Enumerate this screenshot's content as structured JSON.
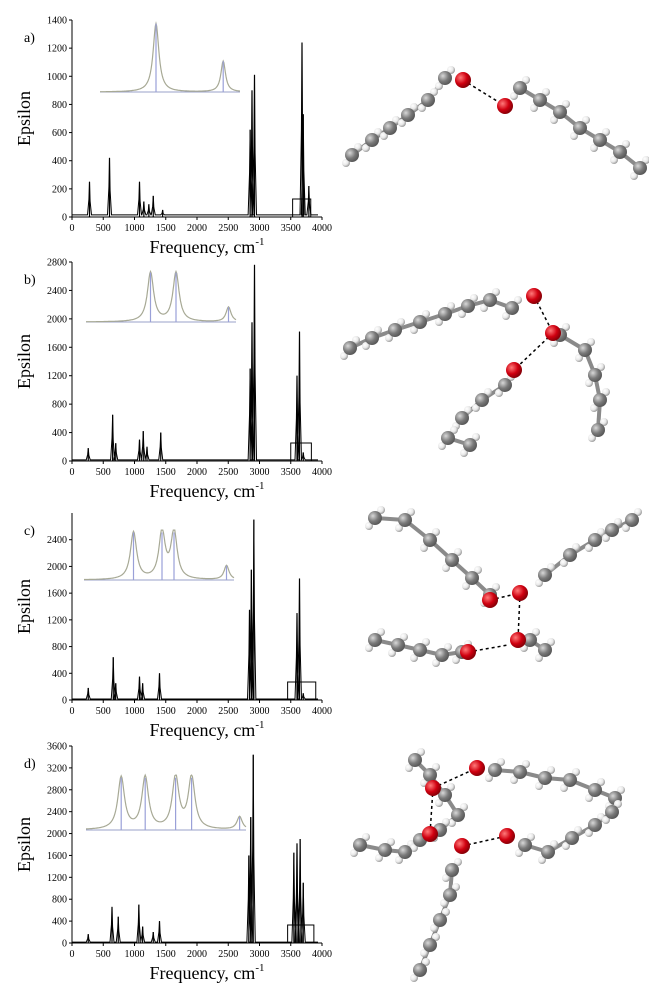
{
  "chart_data": [
    {
      "type": "line",
      "panel_label": "a)",
      "xlabel": "Frequency, cm",
      "xlabel_sup": "-1",
      "ylabel": "Epsilon",
      "xlim": [
        0,
        4000
      ],
      "ylim": [
        0,
        1400
      ],
      "xticks": [
        0,
        500,
        1000,
        1500,
        2000,
        2500,
        3000,
        3500,
        4000
      ],
      "yticks": [
        0,
        200,
        400,
        600,
        800,
        1000,
        1200,
        1400
      ],
      "peaks": [
        [
          280,
          250
        ],
        [
          600,
          420
        ],
        [
          1080,
          250
        ],
        [
          1150,
          110
        ],
        [
          1230,
          90
        ],
        [
          1300,
          150
        ],
        [
          1450,
          50
        ],
        [
          2850,
          620
        ],
        [
          2880,
          900
        ],
        [
          2920,
          1010
        ],
        [
          3680,
          1240
        ],
        [
          3700,
          730
        ],
        [
          3790,
          220
        ]
      ],
      "box": [
        3530,
        3820
      ]
    },
    {
      "type": "line",
      "panel_label": "b)",
      "xlabel": "Frequency, cm",
      "xlabel_sup": "-1",
      "ylabel": "Epsilon",
      "xlim": [
        0,
        4000
      ],
      "ylim": [
        0,
        2800
      ],
      "xticks": [
        0,
        500,
        1000,
        1500,
        2000,
        2500,
        3000,
        3500,
        4000
      ],
      "yticks": [
        0,
        400,
        800,
        1200,
        1600,
        2000,
        2400,
        2800
      ],
      "peaks": [
        [
          260,
          180
        ],
        [
          650,
          650
        ],
        [
          700,
          250
        ],
        [
          1080,
          300
        ],
        [
          1140,
          420
        ],
        [
          1200,
          200
        ],
        [
          1420,
          400
        ],
        [
          2850,
          1300
        ],
        [
          2880,
          1950
        ],
        [
          2920,
          2760
        ],
        [
          3600,
          1200
        ],
        [
          3640,
          1820
        ],
        [
          3700,
          120
        ]
      ],
      "box": [
        3500,
        3830
      ]
    },
    {
      "type": "line",
      "panel_label": "c)",
      "xlabel": "Frequency, cm",
      "xlabel_sup": "-1",
      "ylabel": "Epsilon",
      "xlim": [
        0,
        4000
      ],
      "ylim": [
        0,
        2800
      ],
      "xticks": [
        0,
        500,
        1000,
        1500,
        2000,
        2500,
        3000,
        3500,
        4000
      ],
      "yticks": [
        0,
        400,
        800,
        1200,
        1600,
        2000,
        2400
      ],
      "peaks": [
        [
          260,
          180
        ],
        [
          660,
          640
        ],
        [
          700,
          250
        ],
        [
          1080,
          350
        ],
        [
          1130,
          250
        ],
        [
          1400,
          400
        ],
        [
          2840,
          1350
        ],
        [
          2870,
          1950
        ],
        [
          2910,
          2700
        ],
        [
          3600,
          1300
        ],
        [
          3640,
          1820
        ],
        [
          3700,
          100
        ]
      ],
      "box": [
        3450,
        3900
      ]
    },
    {
      "type": "line",
      "panel_label": "d)",
      "xlabel": "Frequency, cm",
      "xlabel_sup": "-1",
      "ylabel": "Epsilon",
      "xlim": [
        0,
        4000
      ],
      "ylim": [
        0,
        3600
      ],
      "xticks": [
        0,
        500,
        1000,
        1500,
        2000,
        2500,
        3000,
        3500,
        4000
      ],
      "yticks": [
        0,
        400,
        800,
        1200,
        1600,
        2000,
        2400,
        2800,
        3200,
        3600
      ],
      "peaks": [
        [
          260,
          160
        ],
        [
          640,
          660
        ],
        [
          740,
          480
        ],
        [
          1070,
          700
        ],
        [
          1130,
          300
        ],
        [
          1300,
          200
        ],
        [
          1400,
          400
        ],
        [
          2830,
          1600
        ],
        [
          2860,
          2300
        ],
        [
          2900,
          3440
        ],
        [
          3550,
          1650
        ],
        [
          3600,
          1820
        ],
        [
          3650,
          1900
        ],
        [
          3700,
          1100
        ]
      ],
      "box": [
        3450,
        3870
      ]
    }
  ]
}
